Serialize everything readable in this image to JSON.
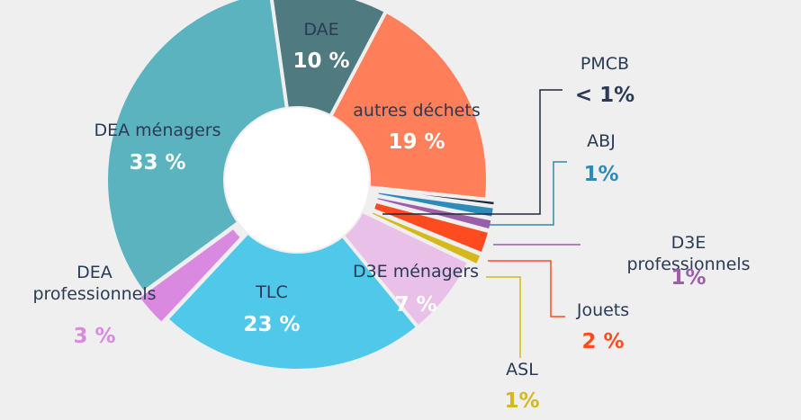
{
  "chart_data": {
    "type": "donut",
    "categories": [
      "DAE",
      "autres déchets",
      "PMCB",
      "ABJ",
      "D3E professionnels",
      "Jouets",
      "ASL",
      "D3E ménagers",
      "TLC",
      "DEA professionnels",
      "DEA ménagers"
    ],
    "values": [
      10,
      19,
      0.5,
      1,
      1,
      2,
      1,
      7,
      23,
      3,
      33
    ],
    "value_labels": [
      "10 %",
      "19 %",
      "< 1%",
      "1%",
      "1%",
      "2 %",
      "1%",
      "7 %",
      "23 %",
      "3 %",
      "33 %"
    ],
    "colors": [
      "#4f7a80",
      "#ff7f5a",
      "#1e2a3a",
      "#2c8bb8",
      "#9b5fa8",
      "#ff4b1f",
      "#d4b81c",
      "#e8c0e8",
      "#4fc8ea",
      "#d98ae0",
      "#5bb3c0"
    ]
  }
}
